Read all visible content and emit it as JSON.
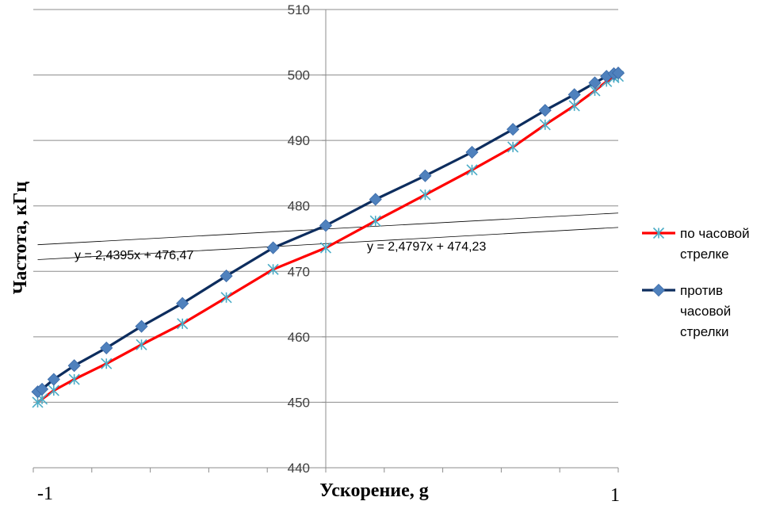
{
  "chart_data": {
    "type": "line",
    "xlabel": "Ускорение, g",
    "ylabel": "Частота, кГц",
    "xlim": [
      -1,
      1
    ],
    "ylim": [
      440,
      510
    ],
    "x_tick_labels": [
      "-1",
      "1"
    ],
    "y_ticks": [
      440,
      450,
      460,
      470,
      480,
      490,
      500,
      510
    ],
    "grid": "horizontal",
    "legend_position": "right",
    "series": [
      {
        "name": "по часовой стрелке",
        "legend_lines": [
          "по часовой",
          "стрелке"
        ],
        "color": "#ff0000",
        "marker": "asterisk",
        "marker_color": "#4bacc6",
        "x": [
          -0.985,
          -0.97,
          -0.93,
          -0.86,
          -0.75,
          -0.63,
          -0.49,
          -0.34,
          -0.18,
          0.0,
          0.17,
          0.34,
          0.5,
          0.64,
          0.75,
          0.85,
          0.92,
          0.96,
          0.985,
          1.0
        ],
        "y": [
          450.0,
          450.5,
          451.8,
          453.5,
          455.9,
          458.8,
          462.0,
          466.0,
          470.3,
          473.6,
          477.7,
          481.7,
          485.5,
          489.0,
          492.4,
          495.3,
          497.6,
          499.0,
          499.6,
          499.8
        ],
        "trendline": {
          "slope": 2.4797,
          "intercept": 474.23,
          "label": "y = 2,4797x + 474,23"
        }
      },
      {
        "name": "против часовой стрелки",
        "legend_lines": [
          "против",
          "часовой",
          "стрелки"
        ],
        "color": "#0d2d5e",
        "marker": "diamond",
        "marker_color": "#4f81bd",
        "x": [
          -0.985,
          -0.97,
          -0.93,
          -0.86,
          -0.75,
          -0.63,
          -0.49,
          -0.34,
          -0.18,
          0.0,
          0.17,
          0.34,
          0.5,
          0.64,
          0.75,
          0.85,
          0.92,
          0.96,
          0.985,
          1.0
        ],
        "y": [
          451.6,
          452.0,
          453.5,
          455.6,
          458.3,
          461.6,
          465.1,
          469.3,
          473.6,
          477.0,
          481.0,
          484.6,
          488.2,
          491.7,
          494.6,
          497.0,
          498.8,
          499.8,
          500.2,
          500.3
        ],
        "trendline": {
          "slope": 2.4395,
          "intercept": 476.47,
          "label": "y = 2,4395x + 476,47"
        }
      }
    ]
  }
}
